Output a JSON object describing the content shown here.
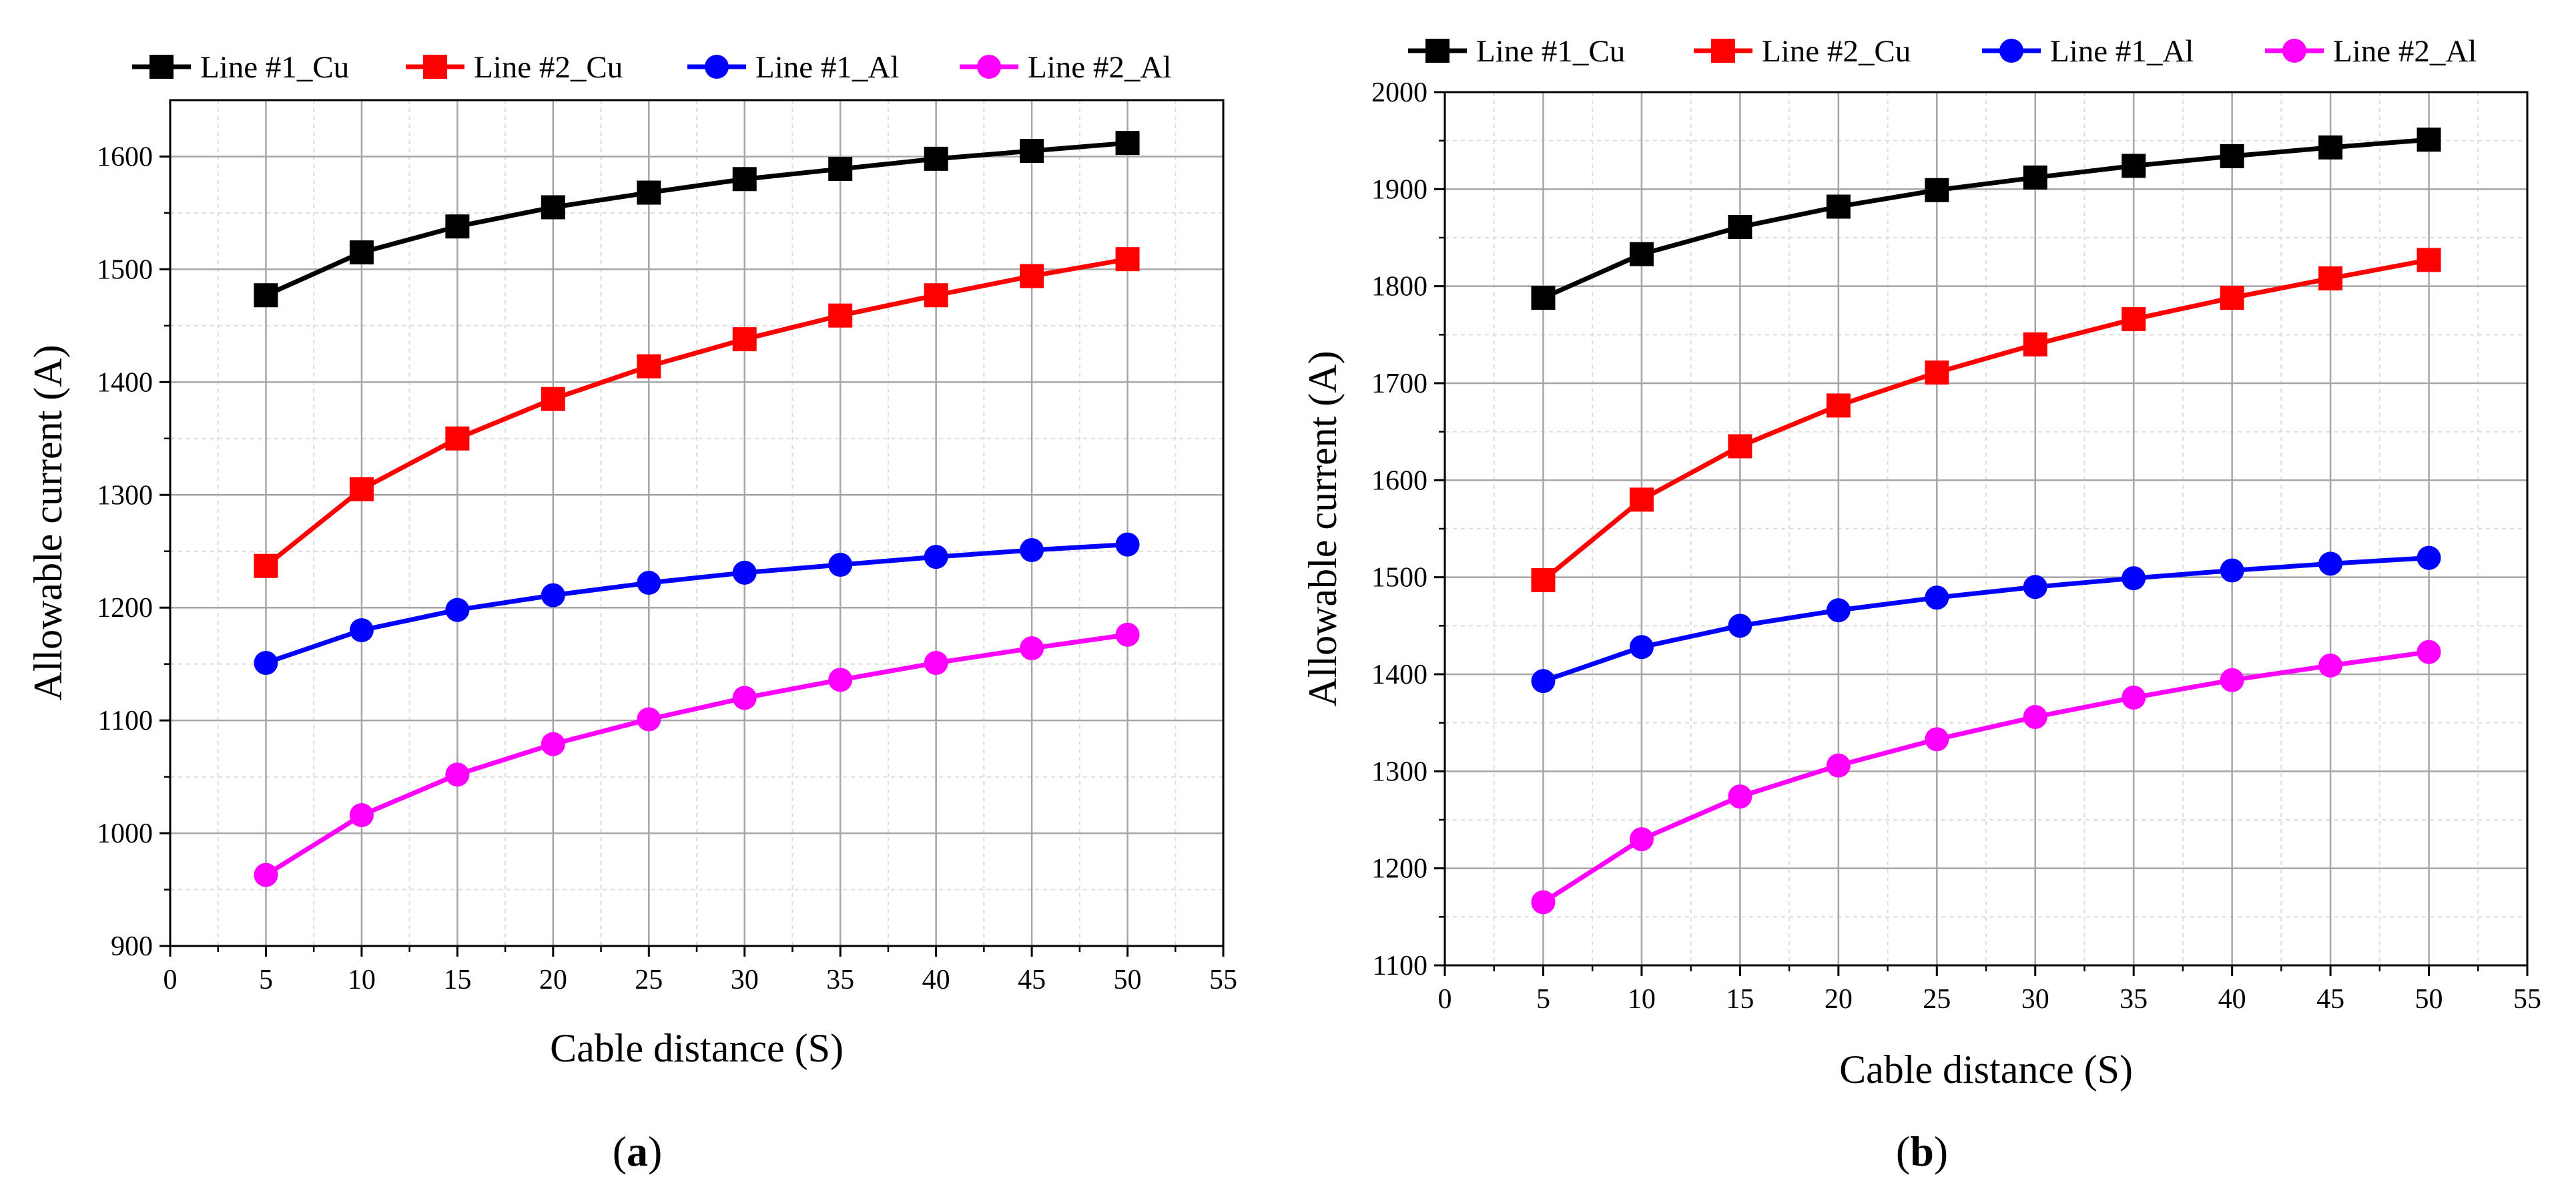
{
  "chart_data": [
    {
      "panel": "a",
      "type": "line",
      "xlabel": "Cable distance (S)",
      "ylabel": "Allowable current (A)",
      "xlim": [
        0,
        55
      ],
      "ylim": [
        900,
        1650
      ],
      "x_ticks": [
        0,
        5,
        10,
        15,
        20,
        25,
        30,
        35,
        40,
        45,
        50,
        55
      ],
      "y_ticks": [
        900,
        1000,
        1100,
        1200,
        1300,
        1400,
        1500,
        1600
      ],
      "grid": true,
      "legend_position": "top",
      "x": [
        5,
        10,
        15,
        20,
        25,
        30,
        35,
        40,
        45,
        50
      ],
      "series": [
        {
          "name": "Line #1_Cu",
          "color": "#000000",
          "marker": "square",
          "values": [
            1477,
            1515,
            1538,
            1555,
            1568,
            1580,
            1589,
            1598,
            1605,
            1612
          ]
        },
        {
          "name": "Line #2_Cu",
          "color": "#ff0000",
          "marker": "square",
          "values": [
            1237,
            1305,
            1350,
            1385,
            1414,
            1438,
            1459,
            1477,
            1494,
            1509
          ]
        },
        {
          "name": "Line #1_Al",
          "color": "#0000ff",
          "marker": "circle",
          "values": [
            1151,
            1180,
            1198,
            1211,
            1222,
            1231,
            1238,
            1245,
            1251,
            1256
          ]
        },
        {
          "name": "Line #2_Al",
          "color": "#ff00ff",
          "marker": "circle",
          "values": [
            963,
            1016,
            1052,
            1079,
            1101,
            1120,
            1136,
            1151,
            1164,
            1176
          ]
        }
      ]
    },
    {
      "panel": "b",
      "type": "line",
      "xlabel": "Cable distance (S)",
      "ylabel": "Allowable current (A)",
      "xlim": [
        0,
        55
      ],
      "ylim": [
        1100,
        2000
      ],
      "x_ticks": [
        0,
        5,
        10,
        15,
        20,
        25,
        30,
        35,
        40,
        45,
        50,
        55
      ],
      "y_ticks": [
        1100,
        1200,
        1300,
        1400,
        1500,
        1600,
        1700,
        1800,
        1900,
        2000
      ],
      "grid": true,
      "legend_position": "top",
      "x": [
        5,
        10,
        15,
        20,
        25,
        30,
        35,
        40,
        45,
        50
      ],
      "series": [
        {
          "name": "Line #1_Cu",
          "color": "#000000",
          "marker": "square",
          "values": [
            1788,
            1833,
            1861,
            1882,
            1899,
            1912,
            1924,
            1934,
            1943,
            1951
          ]
        },
        {
          "name": "Line #2_Cu",
          "color": "#ff0000",
          "marker": "square",
          "values": [
            1497,
            1580,
            1635,
            1677,
            1711,
            1740,
            1766,
            1788,
            1808,
            1827
          ]
        },
        {
          "name": "Line #1_Al",
          "color": "#0000ff",
          "marker": "circle",
          "values": [
            1393,
            1428,
            1450,
            1466,
            1479,
            1490,
            1499,
            1507,
            1514,
            1520
          ]
        },
        {
          "name": "Line #2_Al",
          "color": "#ff00ff",
          "marker": "circle",
          "values": [
            1165,
            1230,
            1274,
            1306,
            1333,
            1356,
            1376,
            1394,
            1409,
            1423
          ]
        }
      ]
    }
  ],
  "panel_labels": [
    "a",
    "b"
  ]
}
